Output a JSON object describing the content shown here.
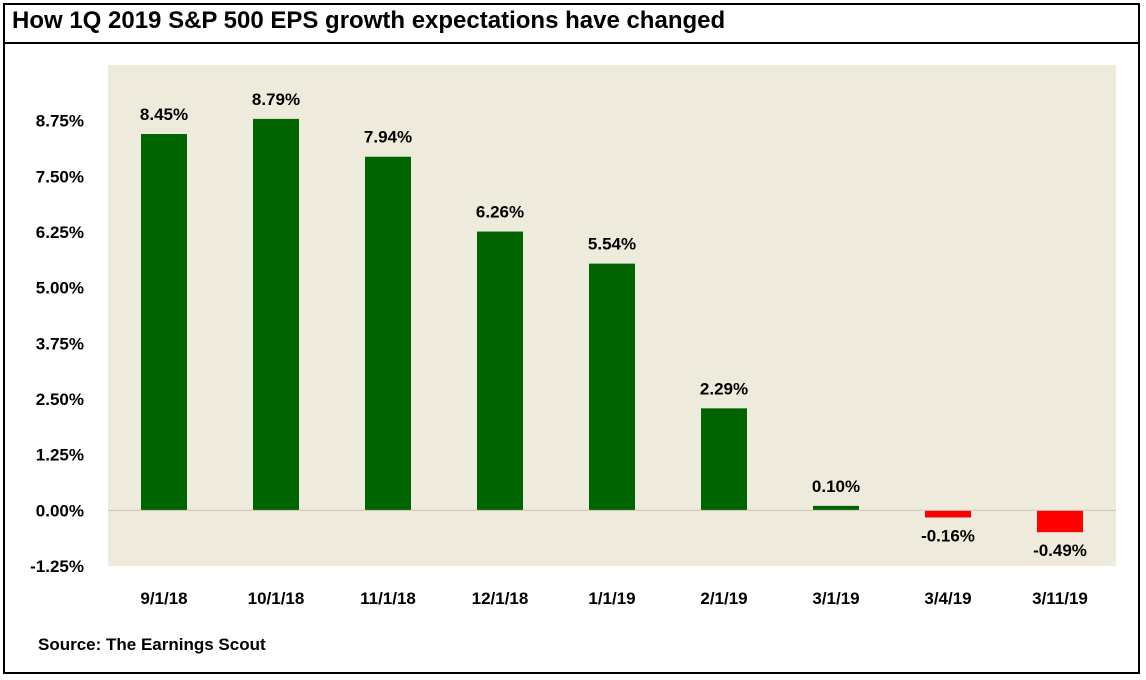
{
  "title": "How 1Q 2019 S&P 500 EPS growth expectations have changed",
  "source": "Source: The Earnings Scout",
  "colors": {
    "positive": "#006400",
    "negative": "#ff0000",
    "plot_background": "#eeebdd",
    "border": "#000000"
  },
  "chart_data": {
    "type": "bar",
    "title": "How 1Q 2019 S&P 500 EPS growth expectations have changed",
    "xlabel": "",
    "ylabel": "",
    "categories": [
      "9/1/18",
      "10/1/18",
      "11/1/18",
      "12/1/18",
      "1/1/19",
      "2/1/19",
      "3/1/19",
      "3/4/19",
      "3/11/19"
    ],
    "values": [
      8.45,
      8.79,
      7.94,
      6.26,
      5.54,
      2.29,
      0.1,
      -0.16,
      -0.49
    ],
    "value_labels": [
      "8.45%",
      "8.79%",
      "7.94%",
      "6.26%",
      "5.54%",
      "2.29%",
      "0.10%",
      "-0.16%",
      "-0.49%"
    ],
    "ylim": [
      -1.25,
      10.0
    ],
    "yticks": [
      -1.25,
      0.0,
      1.25,
      2.5,
      3.75,
      5.0,
      6.25,
      7.5,
      8.75
    ],
    "ytick_labels": [
      "-1.25%",
      "0.00%",
      "1.25%",
      "2.50%",
      "3.75%",
      "5.00%",
      "6.25%",
      "7.50%",
      "8.75%"
    ],
    "grid": false,
    "legend": "none"
  }
}
